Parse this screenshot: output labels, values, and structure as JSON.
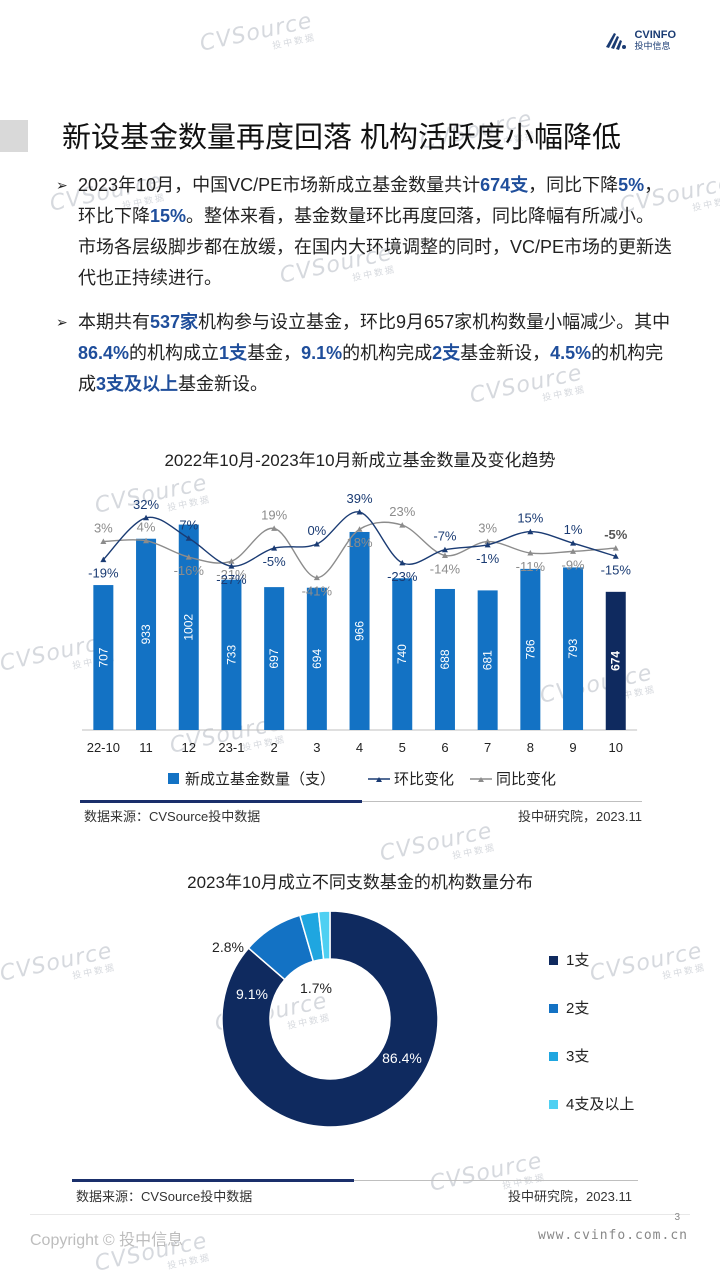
{
  "logo": {
    "brand": "CVINFO",
    "sub": "投中信息"
  },
  "watermark": {
    "text": "CVSource",
    "sub": "投中数据"
  },
  "heading": "新设基金数量再度回落 机构活跃度小幅降低",
  "bullets": [
    {
      "segments": [
        {
          "t": "2023年10月，中国VC/PE市场新成立基金数量共计"
        },
        {
          "t": "674支",
          "hl": true
        },
        {
          "t": "，同比下降"
        },
        {
          "t": "5%",
          "hl": true
        },
        {
          "t": "，环比下降"
        },
        {
          "t": "15%",
          "hl": true
        },
        {
          "t": "。整体来看，基金数量环比再度回落，同比降幅有所减小。市场各层级脚步都在放缓，在国内大环境调整的同时，VC/PE市场的更新迭代也正持续进行。"
        }
      ]
    },
    {
      "segments": [
        {
          "t": "本期共有"
        },
        {
          "t": "537家",
          "hl": true
        },
        {
          "t": "机构参与设立基金，环比9月657家机构数量小幅减少。其中"
        },
        {
          "t": "86.4%",
          "hl": true
        },
        {
          "t": "的机构成立"
        },
        {
          "t": "1支",
          "hl": true
        },
        {
          "t": "基金，"
        },
        {
          "t": "9.1%",
          "hl": true
        },
        {
          "t": "的机构完成"
        },
        {
          "t": "2支",
          "hl": true
        },
        {
          "t": "基金新设，"
        },
        {
          "t": "4.5%",
          "hl": true
        },
        {
          "t": "的机构完成"
        },
        {
          "t": "3支及以上",
          "hl": true
        },
        {
          "t": "基金新设。"
        }
      ]
    }
  ],
  "chart_data": [
    {
      "type": "bar",
      "title": "2022年10月-2023年10月新成立基金数量及变化趋势",
      "categories": [
        "22-10",
        "11",
        "12",
        "23-1",
        "2",
        "3",
        "4",
        "5",
        "6",
        "7",
        "8",
        "9",
        "10"
      ],
      "series": [
        {
          "name": "新成立基金数量（支）",
          "kind": "bar",
          "values": [
            707,
            933,
            1002,
            733,
            697,
            694,
            966,
            740,
            688,
            681,
            786,
            793,
            674
          ],
          "color": "#1372c4",
          "last_color": "#0f2a5f"
        },
        {
          "name": "环比变化",
          "kind": "line",
          "values": [
            -19,
            32,
            7,
            -27,
            -5,
            0,
            39,
            -23,
            -7,
            -1,
            15,
            1,
            -15
          ],
          "labels": [
            "-19%",
            "32%",
            "7%",
            "-27%",
            "-5%",
            "0%",
            "39%",
            "-23%",
            "-7%",
            "-1%",
            "15%",
            "1%",
            "-15%"
          ],
          "color": "#1a3b73"
        },
        {
          "name": "同比变化",
          "kind": "line",
          "values": [
            3,
            4,
            -16,
            -21,
            19,
            -41,
            18,
            23,
            -14,
            3,
            -11,
            -9,
            -5
          ],
          "labels": [
            "3%",
            "4%",
            "-16%",
            "-21%",
            "19%",
            "-41%",
            "18%",
            "23%",
            "-14%",
            "3%",
            "-11%",
            "-9%",
            "-5%"
          ],
          "color": "#8c8c8c"
        }
      ],
      "legend": "bottom",
      "source": "数据来源：CVSource投中数据",
      "publisher": "投中研究院，2023.11"
    },
    {
      "type": "pie",
      "title": "2023年10月成立不同支数基金的机构数量分布",
      "labels": [
        "1支",
        "2支",
        "3支",
        "4支及以上"
      ],
      "values": [
        86.4,
        9.1,
        2.8,
        1.7
      ],
      "value_labels": [
        "86.4%",
        "9.1%",
        "2.8%",
        "1.7%"
      ],
      "colors": [
        "#0f2a5f",
        "#1372c4",
        "#1fa6e0",
        "#4fd0f2"
      ],
      "legend": "right",
      "source": "数据来源：CVSource投中数据",
      "publisher": "投中研究院，2023.11"
    }
  ],
  "footer": {
    "copyright": "Copyright © 投中信息",
    "url": "www.cvinfo.com.cn",
    "page": "3"
  }
}
